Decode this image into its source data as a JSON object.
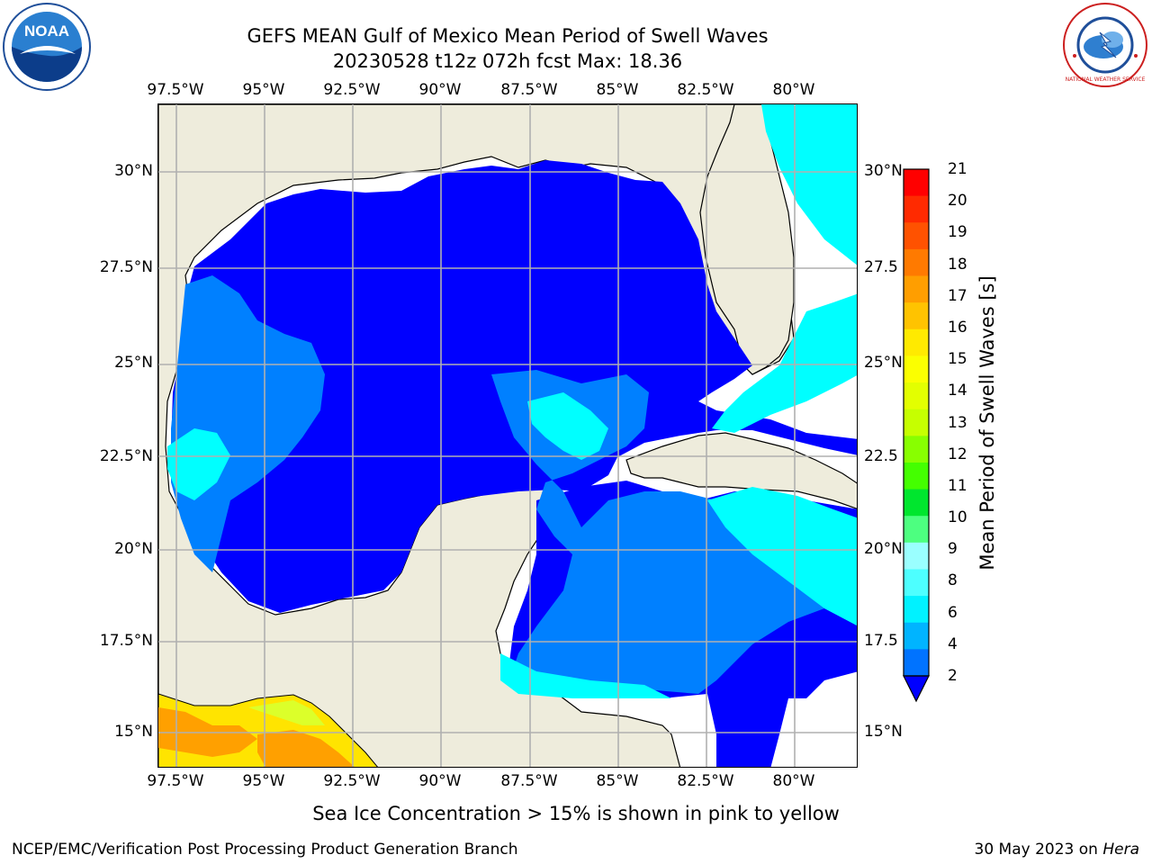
{
  "title_line1": "GEFS MEAN Gulf of Mexico Mean Period of Swell Waves",
  "title_line2": "20230528 t12z 072h fcst   Max: 18.36",
  "logos": {
    "left": {
      "name": "noaa-logo",
      "text": "NOAA"
    },
    "right": {
      "name": "nws-logo",
      "text": "NATIONAL WEATHER SERVICE"
    }
  },
  "map": {
    "lon_ticks_top": [
      "97.5°W",
      "95°W",
      "92.5°W",
      "90°W",
      "87.5°W",
      "85°W",
      "82.5°W",
      "80°W"
    ],
    "lon_ticks_bottom": [
      "97.5°W",
      "95°W",
      "92.5°W",
      "90°W",
      "87.5°W",
      "85°W",
      "82.5°W",
      "80°W"
    ],
    "lat_ticks_left": [
      "30°N",
      "27.5°N",
      "25°N",
      "22.5°N",
      "20°N",
      "17.5°N",
      "15°N"
    ],
    "lat_ticks_right": [
      "30°N",
      "27.5",
      "25°N",
      "22.5",
      "20°N",
      "17.5",
      "15°N"
    ],
    "colors": {
      "land": "#eeecdc",
      "grid": "#b0b0b0",
      "swell_2_4": "#0000ff",
      "swell_4_6": "#0080ff",
      "swell_6_8": "#00ffff",
      "ice_low": "#ffd400",
      "ice_mid": "#ff9f00"
    }
  },
  "colorbar": {
    "label": "Mean Period of Swell Waves [s]",
    "ticks": [
      "21",
      "20",
      "19",
      "18",
      "17",
      "16",
      "15",
      "14",
      "13",
      "12",
      "11",
      "10",
      "9",
      "8",
      "6",
      "4",
      "2"
    ],
    "colors": [
      "#ff0000",
      "#ff2a00",
      "#ff5200",
      "#ff7a00",
      "#ff9e00",
      "#ffc300",
      "#ffea00",
      "#fbff00",
      "#e3ff00",
      "#c6ff00",
      "#88ff00",
      "#44ff00",
      "#00e62e",
      "#4dff80",
      "#9affff",
      "#4dffff",
      "#00f2ff",
      "#00b4ff",
      "#0073ff"
    ]
  },
  "note": "Sea Ice Concentration > 15% is shown in pink to yellow",
  "footer": {
    "left": "NCEP/EMC/Verification Post Processing Product Generation Branch",
    "right_date": "30 May 2023 on",
    "right_machine": "Hera"
  }
}
